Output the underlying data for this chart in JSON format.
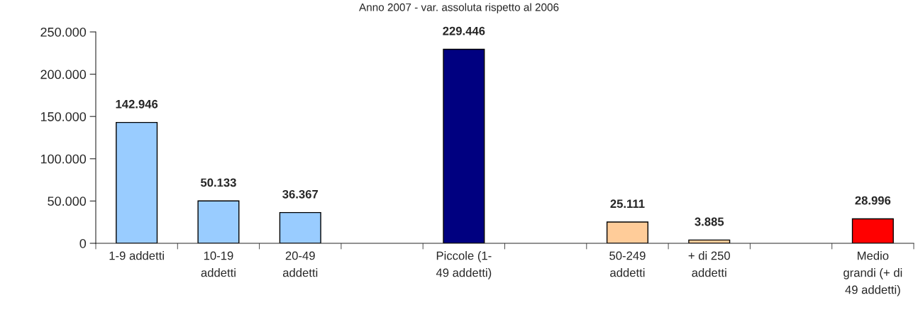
{
  "chart_data": {
    "type": "bar",
    "title": "Anno 2007 - var. assoluta rispetto al 2006",
    "categories": [
      "1-9 addetti",
      "10-19\naddetti",
      "20-49\naddetti",
      null,
      "Piccole (1-\n49 addetti)",
      null,
      "50-249\naddetti",
      "+ di 250\naddetti",
      null,
      "Medio\ngrandi (+ di\n49 addetti)"
    ],
    "values": [
      142946,
      50133,
      36367,
      null,
      229446,
      null,
      25111,
      3885,
      null,
      28996
    ],
    "colors": [
      "#99ccff",
      "#99ccff",
      "#99ccff",
      null,
      "#000080",
      null,
      "#ffcc99",
      "#ffcc99",
      null,
      "#ff0000"
    ],
    "value_labels": [
      "142.946",
      "50.133",
      "36.367",
      null,
      "229.446",
      null,
      "25.111",
      "3.885",
      null,
      "28.996"
    ],
    "ylim": [
      0,
      250000
    ],
    "yticks": [
      {
        "value": 0,
        "label": "0"
      },
      {
        "value": 50000,
        "label": "50.000"
      },
      {
        "value": 100000,
        "label": "100.000"
      },
      {
        "value": 150000,
        "label": "150.000"
      },
      {
        "value": 200000,
        "label": "200.000"
      },
      {
        "value": 250000,
        "label": "250.000"
      }
    ],
    "grid": false,
    "legend": false
  }
}
